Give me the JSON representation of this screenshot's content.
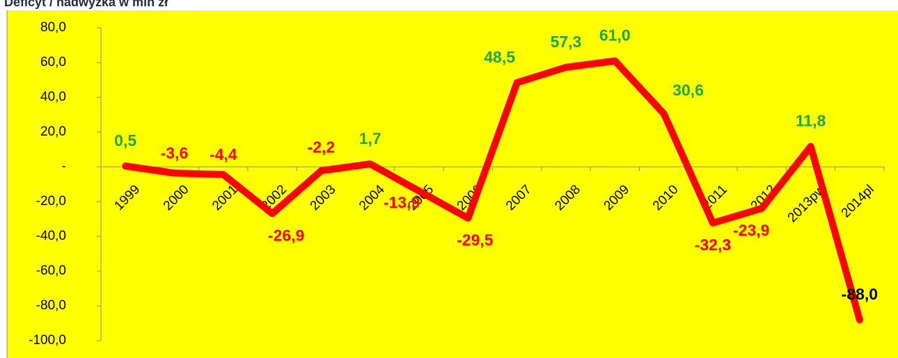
{
  "chart_data": {
    "type": "line",
    "title": "Deficyt / nadwyżka w mln zł",
    "categories": [
      "1999",
      "2000",
      "2001",
      "2002",
      "2003",
      "2004",
      "2005",
      "2006",
      "2007",
      "2008",
      "2009",
      "2010",
      "2011",
      "2012",
      "2013pw",
      "2014pl"
    ],
    "series": [
      {
        "name": "Deficyt / nadwyżka",
        "color": "#ff0000",
        "values": [
          0.5,
          -3.6,
          -4.4,
          -26.9,
          -2.2,
          1.7,
          -13.9,
          -29.5,
          48.5,
          57.3,
          61.0,
          30.6,
          -32.3,
          -23.9,
          11.8,
          -88.0
        ],
        "value_labels": [
          "0,5",
          "-3,6",
          "-4,4",
          "-26,9",
          "-2,2",
          "1,7",
          "-13,9",
          "-29,5",
          "48,5",
          "57,3",
          "61,0",
          "30,6",
          "-32,3",
          "-23,9",
          "11,8",
          "-88,0"
        ],
        "value_label_colors": [
          "#1aa64a",
          "#ff0000",
          "#ff0000",
          "#ff0000",
          "#ff0000",
          "#1aa64a",
          "#ff0000",
          "#ff0000",
          "#1aa64a",
          "#1aa64a",
          "#1aa64a",
          "#1aa64a",
          "#ff0000",
          "#ff0000",
          "#1aa64a",
          "#000000"
        ]
      }
    ],
    "ylim": [
      -100,
      80
    ],
    "yticks": [
      {
        "value": 80,
        "label": "80,0"
      },
      {
        "value": 60,
        "label": "60,0"
      },
      {
        "value": 40,
        "label": "40,0"
      },
      {
        "value": 20,
        "label": "20,0"
      },
      {
        "value": 0,
        "label": "-"
      },
      {
        "value": -20,
        "label": "-20,0"
      },
      {
        "value": -40,
        "label": "-40,0"
      },
      {
        "value": -60,
        "label": "-60,0"
      },
      {
        "value": -80,
        "label": "-80,0"
      },
      {
        "value": -100,
        "label": "-100,0"
      }
    ],
    "background": "#ffff00"
  }
}
